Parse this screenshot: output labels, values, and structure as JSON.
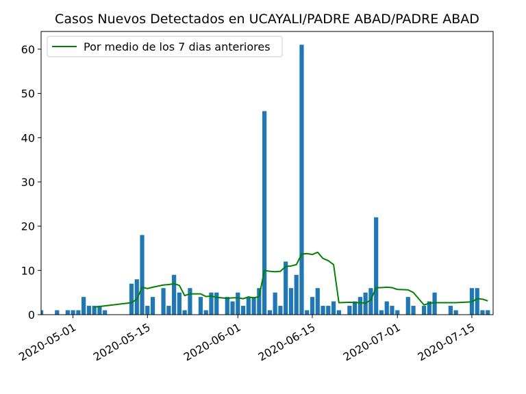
{
  "chart_data": {
    "type": "bar",
    "title": "Casos Nuevos Detectados en UCAYALI/PADRE ABAD/PADRE ABAD",
    "xlabel": "",
    "ylabel": "",
    "x_range": [
      "2020-04-25",
      "2020-07-19"
    ],
    "ylim": [
      0,
      64
    ],
    "y_ticks": [
      0,
      10,
      20,
      30,
      40,
      50,
      60
    ],
    "x_ticks": [
      "2020-05-01",
      "2020-05-15",
      "2020-06-01",
      "2020-06-15",
      "2020-07-01",
      "2020-07-15"
    ],
    "grid": false,
    "legend_position": "upper-left",
    "colors": {
      "bars": "#1f77b4",
      "line": "#008000"
    },
    "bar_series": {
      "dates": [
        "2020-04-25",
        "2020-04-28",
        "2020-04-30",
        "2020-05-01",
        "2020-05-02",
        "2020-05-03",
        "2020-05-04",
        "2020-05-05",
        "2020-05-06",
        "2020-05-07",
        "2020-05-12",
        "2020-05-13",
        "2020-05-14",
        "2020-05-15",
        "2020-05-16",
        "2020-05-18",
        "2020-05-19",
        "2020-05-20",
        "2020-05-21",
        "2020-05-22",
        "2020-05-23",
        "2020-05-25",
        "2020-05-26",
        "2020-05-27",
        "2020-05-28",
        "2020-05-30",
        "2020-05-31",
        "2020-06-01",
        "2020-06-02",
        "2020-06-03",
        "2020-06-04",
        "2020-06-05",
        "2020-06-06",
        "2020-06-07",
        "2020-06-08",
        "2020-06-09",
        "2020-06-10",
        "2020-06-11",
        "2020-06-12",
        "2020-06-13",
        "2020-06-14",
        "2020-06-15",
        "2020-06-16",
        "2020-06-17",
        "2020-06-18",
        "2020-06-19",
        "2020-06-20",
        "2020-06-22",
        "2020-06-23",
        "2020-06-24",
        "2020-06-25",
        "2020-06-26",
        "2020-06-27",
        "2020-06-28",
        "2020-06-29",
        "2020-06-30",
        "2020-07-01",
        "2020-07-03",
        "2020-07-04",
        "2020-07-06",
        "2020-07-07",
        "2020-07-08",
        "2020-07-11",
        "2020-07-12",
        "2020-07-15",
        "2020-07-16",
        "2020-07-17",
        "2020-07-18"
      ],
      "values": [
        1,
        1,
        1,
        1,
        1,
        4,
        2,
        2,
        2,
        1,
        7,
        8,
        18,
        2,
        4,
        6,
        2,
        9,
        5,
        1,
        6,
        4,
        1,
        5,
        5,
        4,
        3,
        5,
        2,
        4,
        4,
        6,
        46,
        1,
        5,
        2,
        12,
        6,
        9,
        61,
        1,
        4,
        6,
        2,
        2,
        3,
        1,
        2,
        3,
        4,
        5,
        6,
        22,
        1,
        3,
        2,
        1,
        4,
        2,
        2,
        3,
        5,
        2,
        1,
        6,
        6,
        1,
        1
      ]
    },
    "series": [
      {
        "name": "Por medio de los 7 dias anteriores",
        "x": [
          "2020-05-05",
          "2020-05-12",
          "2020-05-13",
          "2020-05-14",
          "2020-05-15",
          "2020-05-16",
          "2020-05-18",
          "2020-05-19",
          "2020-05-20",
          "2020-05-21",
          "2020-05-22",
          "2020-05-23",
          "2020-05-25",
          "2020-05-26",
          "2020-05-27",
          "2020-05-28",
          "2020-05-30",
          "2020-05-31",
          "2020-06-01",
          "2020-06-02",
          "2020-06-03",
          "2020-06-04",
          "2020-06-05",
          "2020-06-06",
          "2020-06-07",
          "2020-06-08",
          "2020-06-09",
          "2020-06-10",
          "2020-06-11",
          "2020-06-12",
          "2020-06-13",
          "2020-06-14",
          "2020-06-15",
          "2020-06-16",
          "2020-06-17",
          "2020-06-18",
          "2020-06-19",
          "2020-06-20",
          "2020-06-22",
          "2020-06-23",
          "2020-06-24",
          "2020-06-25",
          "2020-06-26",
          "2020-06-27",
          "2020-06-28",
          "2020-06-29",
          "2020-06-30",
          "2020-07-01",
          "2020-07-03",
          "2020-07-04",
          "2020-07-06",
          "2020-07-07",
          "2020-07-08",
          "2020-07-11",
          "2020-07-12",
          "2020-07-15",
          "2020-07-16",
          "2020-07-17",
          "2020-07-18"
        ],
        "values": [
          1.7,
          2.7,
          3.5,
          6.2,
          5.9,
          6.2,
          6.7,
          6.8,
          7.0,
          6.6,
          4.3,
          4.7,
          4.7,
          4.1,
          4.2,
          3.9,
          3.7,
          3.8,
          3.8,
          3.6,
          4.0,
          3.8,
          4.1,
          10.0,
          9.8,
          9.7,
          9.8,
          10.9,
          11.0,
          11.3,
          13.7,
          13.8,
          13.6,
          14.1,
          12.7,
          12.2,
          11.3,
          2.7,
          2.8,
          2.7,
          2.7,
          2.6,
          3.3,
          6.1,
          6.1,
          6.2,
          6.1,
          5.7,
          5.6,
          5.0,
          2.2,
          2.6,
          2.7,
          2.7,
          2.7,
          2.9,
          3.6,
          3.5,
          3.1
        ]
      }
    ]
  }
}
